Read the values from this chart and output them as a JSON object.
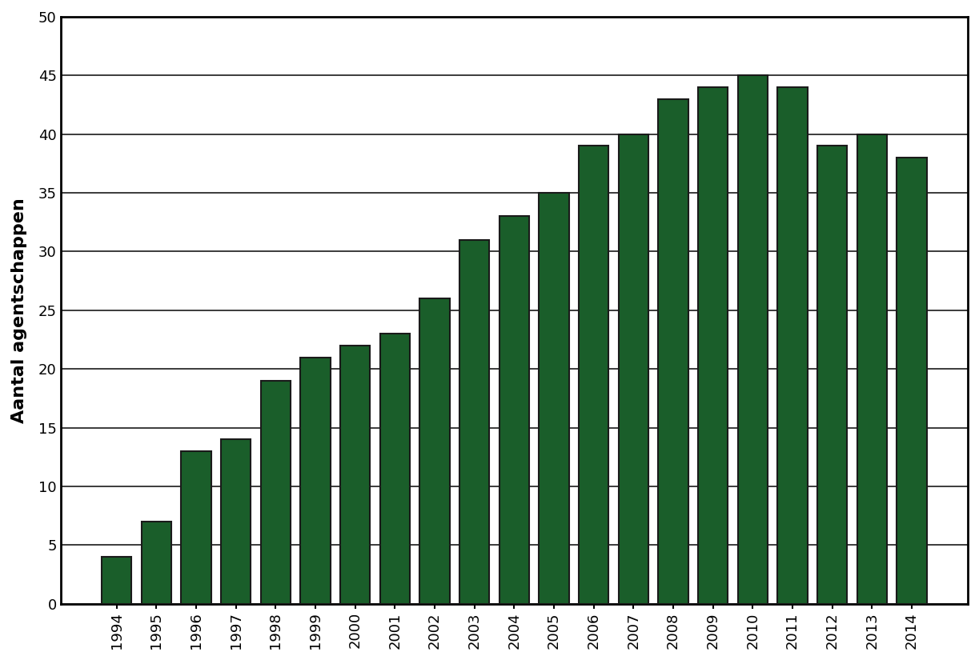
{
  "years": [
    "1994",
    "1995",
    "1996",
    "1997",
    "1998",
    "1999",
    "2000",
    "2001",
    "2002",
    "2003",
    "2004",
    "2005",
    "2006",
    "2007",
    "2008",
    "2009",
    "2010",
    "2011",
    "2012",
    "2013",
    "2014"
  ],
  "values": [
    4,
    7,
    13,
    14,
    19,
    21,
    22,
    23,
    26,
    31,
    33,
    35,
    39,
    40,
    43,
    44,
    45,
    44,
    39,
    40,
    38
  ],
  "bar_color": "#1a5e2a",
  "bar_edge_color": "#1a1a1a",
  "ylabel": "Aantal agentschappen",
  "ylim": [
    0,
    50
  ],
  "yticks": [
    0,
    5,
    10,
    15,
    20,
    25,
    30,
    35,
    40,
    45,
    50
  ],
  "background_color": "#ffffff",
  "grid_color": "#1a1a1a",
  "ylabel_fontsize": 16,
  "tick_fontsize": 13,
  "bar_width": 0.75,
  "bar_edge_linewidth": 1.5,
  "grid_linewidth": 1.2,
  "spine_linewidth": 2.0
}
